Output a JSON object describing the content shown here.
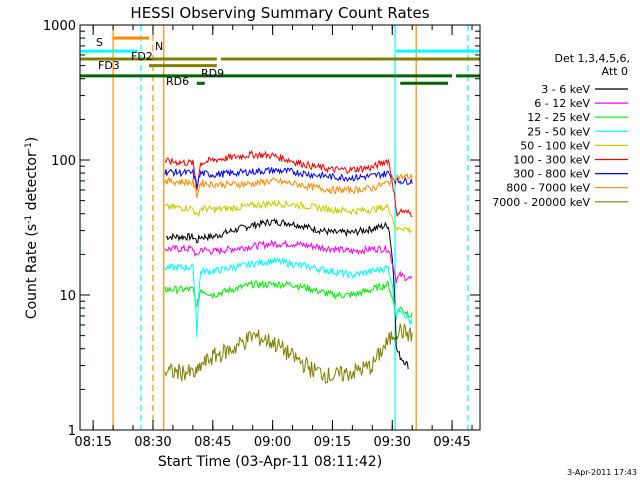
{
  "chart_data": {
    "type": "line",
    "title": "HESSI Observing Summary Count Rates",
    "xlabel": "Start Time (03-Apr-11 08:11:42)",
    "ylabel_main": "Count Rate (s",
    "ylabel_sup1": "-1",
    "ylabel_mid": " detector",
    "ylabel_sup2": "-1",
    "ylabel_end": ")",
    "x_unit": "minutes after 08:00 UT",
    "x_ticks": [
      {
        "value": 15,
        "label": "08:15"
      },
      {
        "value": 30,
        "label": "08:30"
      },
      {
        "value": 45,
        "label": "08:45"
      },
      {
        "value": 60,
        "label": "09:00"
      },
      {
        "value": 75,
        "label": "09:15"
      },
      {
        "value": 90,
        "label": "09:30"
      },
      {
        "value": 105,
        "label": "09:45"
      }
    ],
    "xlim": [
      11.7,
      112
    ],
    "y_scale": "log",
    "ylim": [
      1,
      1000
    ],
    "y_ticks": [
      {
        "value": 1,
        "label": "1"
      },
      {
        "value": 10,
        "label": "10"
      },
      {
        "value": 100,
        "label": "100"
      },
      {
        "value": 1000,
        "label": "1000"
      }
    ],
    "legend_position": "right",
    "legend_header": [
      "Det 1,3,4,5,6,",
      "Att 0"
    ],
    "series": [
      {
        "name": "3 - 6 keV",
        "color": "#000000",
        "x": [
          32.5,
          33,
          40,
          41,
          42,
          45,
          50,
          55,
          60,
          65,
          70,
          75,
          80,
          85,
          89,
          91,
          92,
          94,
          95
        ],
        "values": [
          null,
          27,
          27,
          25,
          27,
          27,
          30,
          33,
          35,
          34,
          31,
          29,
          29,
          31,
          33,
          4,
          3.5,
          3,
          null
        ]
      },
      {
        "name": "6 - 12 keV",
        "color": "#ff00ff",
        "x": [
          33,
          40,
          41,
          42,
          45,
          50,
          55,
          60,
          65,
          70,
          75,
          80,
          85,
          89,
          91,
          92,
          95
        ],
        "values": [
          22,
          22,
          19,
          22,
          21,
          22,
          23,
          24,
          24,
          23,
          22,
          21,
          22,
          22,
          13,
          14,
          13
        ]
      },
      {
        "name": "12 - 25 keV",
        "color": "#00ee00",
        "x": [
          33,
          40,
          41,
          42,
          45,
          50,
          55,
          60,
          65,
          70,
          75,
          80,
          85,
          89,
          91,
          92,
          95
        ],
        "values": [
          11,
          11,
          8,
          11,
          10,
          11,
          12,
          12,
          12,
          11,
          10,
          10,
          11,
          12,
          7,
          8,
          7
        ]
      },
      {
        "name": "25 - 50 keV",
        "color": "#00ffff",
        "x": [
          33,
          40,
          41,
          42,
          45,
          50,
          55,
          60,
          65,
          70,
          75,
          80,
          85,
          89,
          91,
          92,
          95
        ],
        "values": [
          16,
          16,
          5,
          15,
          15,
          16,
          17,
          18,
          17,
          16,
          15,
          14,
          15,
          16,
          7,
          8,
          6
        ]
      },
      {
        "name": "50 - 100 keV",
        "color": "#cccc00",
        "x": [
          33,
          40,
          41,
          42,
          45,
          50,
          55,
          60,
          65,
          70,
          75,
          80,
          85,
          89,
          91,
          92,
          95
        ],
        "values": [
          45,
          44,
          38,
          44,
          43,
          44,
          46,
          48,
          47,
          45,
          43,
          42,
          43,
          45,
          30,
          32,
          30
        ]
      },
      {
        "name": "100 - 300 keV",
        "color": "#ff0000",
        "x": [
          33,
          40,
          41,
          42,
          45,
          50,
          55,
          60,
          65,
          70,
          75,
          80,
          85,
          89,
          91,
          92,
          95
        ],
        "values": [
          98,
          95,
          60,
          95,
          100,
          105,
          110,
          108,
          98,
          90,
          85,
          85,
          88,
          100,
          40,
          42,
          40
        ]
      },
      {
        "name": "300 - 800 keV",
        "color": "#0000ff",
        "x": [
          33,
          40,
          41,
          42,
          45,
          50,
          55,
          60,
          65,
          70,
          75,
          80,
          85,
          89,
          91,
          92,
          95
        ],
        "values": [
          82,
          80,
          65,
          80,
          78,
          80,
          82,
          84,
          82,
          78,
          75,
          74,
          76,
          80,
          70,
          70,
          70
        ]
      },
      {
        "name": "800 - 7000 keV",
        "color": "#ff8c00",
        "x": [
          33,
          40,
          41,
          42,
          45,
          50,
          55,
          60,
          65,
          70,
          75,
          80,
          85,
          89,
          91,
          92,
          95
        ],
        "values": [
          70,
          68,
          55,
          68,
          66,
          66,
          67,
          70,
          67,
          63,
          60,
          60,
          62,
          68,
          75,
          75,
          75
        ]
      },
      {
        "name": "7000 - 20000 keV",
        "color": "#808000",
        "x": [
          33,
          38,
          41,
          42,
          45,
          50,
          55,
          60,
          65,
          70,
          75,
          80,
          85,
          89,
          91,
          92,
          95
        ],
        "values": [
          2.7,
          2.7,
          2.6,
          3,
          3.5,
          4,
          5,
          4.5,
          3.5,
          2.8,
          2.5,
          2.7,
          3,
          4.5,
          5.5,
          5.5,
          5
        ]
      }
    ],
    "state_flags": [
      {
        "label": "S",
        "color": "#ff8c00",
        "y": 800,
        "segments": [
          [
            20,
            29
          ]
        ]
      },
      {
        "label": "N",
        "color": "#00ffff",
        "y": 640,
        "segments": [
          [
            11.7,
            26.2
          ],
          [
            91,
            112
          ]
        ]
      },
      {
        "label": "FD2",
        "color": "#808000",
        "y": 560,
        "segments": [
          [
            11.7,
            46
          ],
          [
            47,
            112
          ]
        ]
      },
      {
        "label": "FD3",
        "color": "#808000",
        "y": 500,
        "segments": [
          [
            29,
            46
          ]
        ]
      },
      {
        "label": "RD6",
        "color": "#006400",
        "y": 420,
        "segments": [
          [
            11.7,
            91
          ],
          [
            91,
            105
          ],
          [
            106,
            112
          ]
        ]
      },
      {
        "label": "RD9",
        "color": "#006400",
        "y": 370,
        "segments": [
          [
            41,
            43
          ],
          [
            92,
            104
          ]
        ]
      }
    ],
    "vertical_markers": [
      {
        "x": 11.7,
        "color": "#00ffff",
        "style": "solid"
      },
      {
        "x": 20,
        "color": "#ff8c00",
        "style": "solid"
      },
      {
        "x": 27,
        "color": "#00ffff",
        "style": "dashed"
      },
      {
        "x": 30,
        "color": "#ff8c00",
        "style": "dashed"
      },
      {
        "x": 32.7,
        "color": "#ff8c00",
        "style": "solid"
      },
      {
        "x": 90.7,
        "color": "#00ffff",
        "style": "solid"
      },
      {
        "x": 96,
        "color": "#ff8c00",
        "style": "solid"
      },
      {
        "x": 109,
        "color": "#00ffff",
        "style": "dashed"
      }
    ]
  },
  "footer": {
    "date_stamp": "3-Apr-2011 17:43"
  }
}
